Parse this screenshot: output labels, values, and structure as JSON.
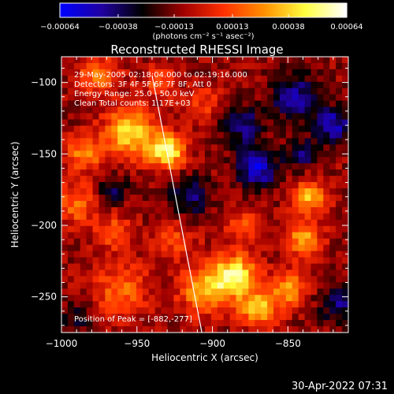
{
  "chart_data": {
    "type": "heatmap",
    "title": "Reconstructed RHESSI Image",
    "xlabel": "Heliocentric X (arcsec)",
    "ylabel": "Heliocentric Y (arcsec)",
    "xlim": [
      -1000,
      -810
    ],
    "ylim": [
      -275,
      -82
    ],
    "x_ticks": [
      -1000,
      -950,
      -900,
      -850
    ],
    "y_ticks": [
      -100,
      -150,
      -200,
      -250
    ],
    "x_tick_labels": [
      "−1000",
      "−950",
      "−900",
      "−850"
    ],
    "y_tick_labels": [
      "−100",
      "−150",
      "−200",
      "−250"
    ],
    "colorbar": {
      "range": [
        -0.00064,
        0.00064
      ],
      "tick_values": [
        -0.00064,
        -0.00038,
        -0.00013,
        0.00013,
        0.00038,
        0.00064
      ],
      "tick_labels": [
        "−0.00064",
        "−0.00038",
        "−0.00013",
        "0.00013",
        "0.00038",
        "0.00064"
      ],
      "units": "(photons cm⁻² s⁻¹ asec⁻²)",
      "colors": [
        "#0000ff",
        "#2000a0",
        "#000000",
        "#a00000",
        "#ff3000",
        "#ff9000",
        "#ffff40",
        "#ffffff"
      ]
    },
    "annotations": [
      "29-May-2005 02:18:04.000 to 02:19:16.000",
      "Detectors: 3F 4F 5F 6F 7F 8F, Att 0",
      "Energy Range: 25.0 - 50.0 keV",
      "Clean    Total counts: 1.17E+03"
    ],
    "peak_label": "Position of Peak = [-882,-277]",
    "limb_line": {
      "x": [
        -940,
        -907
      ],
      "y": [
        -95,
        -275
      ]
    },
    "blobs": [
      {
        "x": -975,
        "y": -95,
        "r": 14,
        "v": 0.0003
      },
      {
        "x": -955,
        "y": -135,
        "r": 16,
        "v": 0.00055
      },
      {
        "x": -930,
        "y": -148,
        "r": 12,
        "v": 0.0006
      },
      {
        "x": -985,
        "y": -150,
        "r": 12,
        "v": 0.00035
      },
      {
        "x": -990,
        "y": -185,
        "r": 14,
        "v": 0.0003
      },
      {
        "x": -965,
        "y": -205,
        "r": 12,
        "v": 0.00025
      },
      {
        "x": -960,
        "y": -245,
        "r": 18,
        "v": 0.0003
      },
      {
        "x": -925,
        "y": -210,
        "r": 14,
        "v": 0.0002
      },
      {
        "x": -905,
        "y": -245,
        "r": 16,
        "v": 0.00045
      },
      {
        "x": -885,
        "y": -235,
        "r": 14,
        "v": 0.0006
      },
      {
        "x": -870,
        "y": -258,
        "r": 12,
        "v": 0.0005
      },
      {
        "x": -850,
        "y": -245,
        "r": 12,
        "v": 0.0004
      },
      {
        "x": -840,
        "y": -210,
        "r": 12,
        "v": 0.0004
      },
      {
        "x": -835,
        "y": -180,
        "r": 11,
        "v": 0.00045
      },
      {
        "x": -878,
        "y": -200,
        "r": 12,
        "v": 0.00025
      },
      {
        "x": -905,
        "y": -115,
        "r": 12,
        "v": 0.0002
      },
      {
        "x": -935,
        "y": -100,
        "r": 10,
        "v": 0.0003
      },
      {
        "x": -870,
        "y": -160,
        "r": 14,
        "v": -0.00045
      },
      {
        "x": -845,
        "y": -110,
        "r": 16,
        "v": -0.00035
      },
      {
        "x": -820,
        "y": -130,
        "r": 12,
        "v": -0.0004
      },
      {
        "x": -815,
        "y": -255,
        "r": 14,
        "v": -0.0003
      },
      {
        "x": -880,
        "y": -130,
        "r": 14,
        "v": -0.0003
      },
      {
        "x": -965,
        "y": -175,
        "r": 10,
        "v": -0.00025
      },
      {
        "x": -915,
        "y": -180,
        "r": 14,
        "v": -0.0003
      },
      {
        "x": -840,
        "y": -150,
        "r": 10,
        "v": -0.0003
      },
      {
        "x": -990,
        "y": -265,
        "r": 10,
        "v": -0.0002
      }
    ]
  },
  "timestamp": "30-Apr-2022 07:31"
}
